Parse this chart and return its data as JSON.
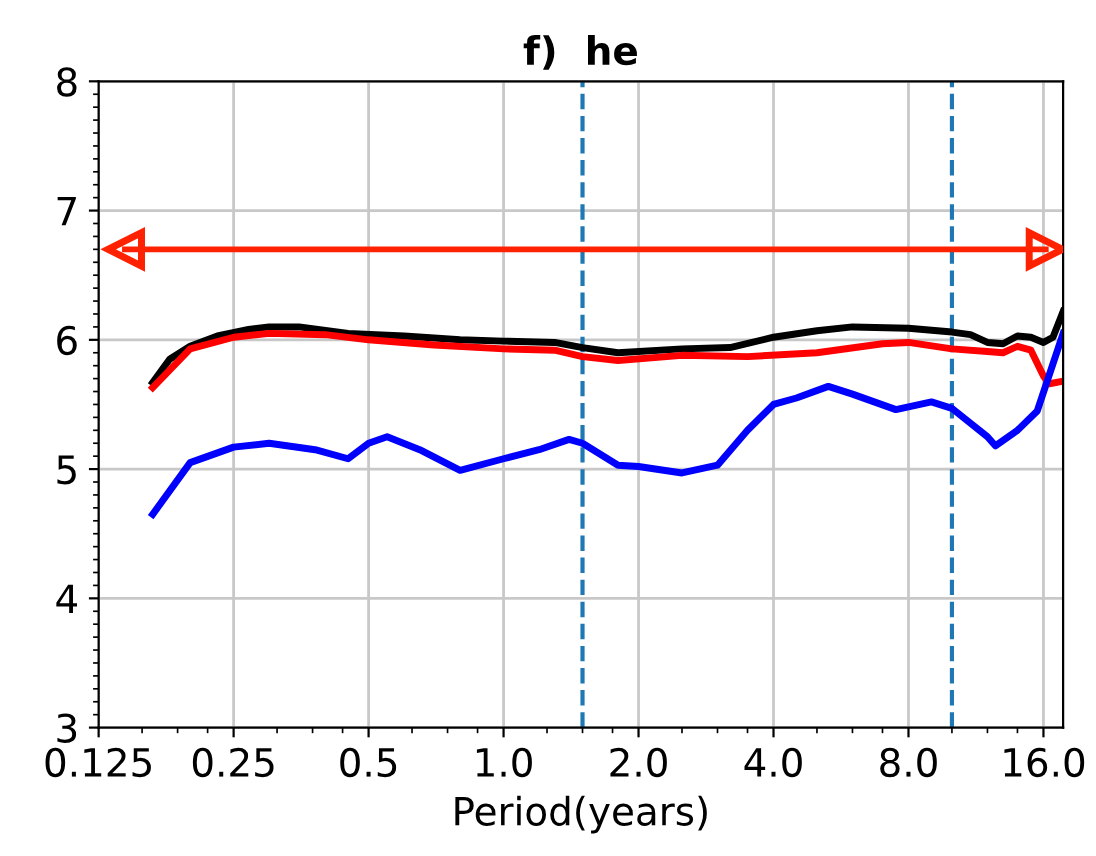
{
  "chart_data": {
    "type": "line",
    "title": "f)  he",
    "xlabel": "Period(years)",
    "log": "x",
    "xlim": [
      0.125,
      17.7
    ],
    "xticks": [
      0.125,
      0.25,
      0.5,
      {
        "value": 1,
        "label": "1.0"
      },
      {
        "value": 2,
        "label": "2.0"
      },
      {
        "value": 4,
        "label": "4.0"
      },
      {
        "value": 8,
        "label": "8.0"
      },
      {
        "value": 16,
        "label": "16.0"
      }
    ],
    "ylim": [
      3,
      8
    ],
    "yticks": [
      3,
      4,
      5,
      6,
      7,
      8
    ],
    "grid": true,
    "line_style": "solid",
    "ref_lines": [
      {
        "axis": "x",
        "value": 1.5,
        "color": "#1f77b4",
        "line_style": "dashed"
      },
      {
        "axis": "x",
        "value": 10,
        "color": "#1f77b4",
        "line_style": "dashed"
      }
    ],
    "series": [
      {
        "color": "#ff2200",
        "marker": "triangle",
        "x": [
          0.143,
          16.2
        ],
        "values": [
          6.7,
          6.7
        ]
      },
      {
        "color": "#000000",
        "x": [
          0.165,
          0.18,
          0.2,
          0.23,
          0.27,
          0.3,
          0.35,
          0.45,
          0.6,
          0.8,
          1.0,
          1.3,
          1.5,
          1.8,
          2.5,
          3.2,
          4.0,
          5.0,
          6.0,
          8.0,
          10,
          11,
          12,
          13,
          14,
          15,
          16,
          16.8,
          17.7
        ],
        "values": [
          5.67,
          5.85,
          5.95,
          6.03,
          6.08,
          6.1,
          6.1,
          6.05,
          6.03,
          6.0,
          5.99,
          5.98,
          5.94,
          5.9,
          5.93,
          5.94,
          6.02,
          6.07,
          6.1,
          6.09,
          6.06,
          6.04,
          5.98,
          5.97,
          6.03,
          6.02,
          5.98,
          6.02,
          6.22
        ]
      },
      {
        "color": "#ff0000",
        "x": [
          0.165,
          0.2,
          0.25,
          0.3,
          0.4,
          0.5,
          0.7,
          1.0,
          1.3,
          1.5,
          1.8,
          2.5,
          3.5,
          5,
          7,
          8,
          10,
          12,
          13,
          14,
          15,
          16,
          16.5,
          17.7
        ],
        "values": [
          5.63,
          5.93,
          6.02,
          6.05,
          6.04,
          6.0,
          5.96,
          5.93,
          5.92,
          5.87,
          5.84,
          5.88,
          5.87,
          5.9,
          5.97,
          5.98,
          5.93,
          5.91,
          5.9,
          5.95,
          5.92,
          5.72,
          5.66,
          5.68
        ]
      },
      {
        "color": "#0000ff",
        "x": [
          0.165,
          0.2,
          0.25,
          0.3,
          0.38,
          0.45,
          0.5,
          0.55,
          0.65,
          0.8,
          1.0,
          1.2,
          1.4,
          1.5,
          1.8,
          2.0,
          2.5,
          3.0,
          3.5,
          4.0,
          4.5,
          5.3,
          6.0,
          7.5,
          9.0,
          10,
          12,
          12.5,
          14,
          15.5,
          17.7
        ],
        "values": [
          4.65,
          5.05,
          5.17,
          5.2,
          5.15,
          5.08,
          5.2,
          5.25,
          5.15,
          4.99,
          5.08,
          5.15,
          5.23,
          5.2,
          5.03,
          5.02,
          4.97,
          5.03,
          5.3,
          5.5,
          5.55,
          5.64,
          5.58,
          5.46,
          5.52,
          5.47,
          5.25,
          5.18,
          5.3,
          5.45,
          6.05
        ]
      }
    ]
  }
}
